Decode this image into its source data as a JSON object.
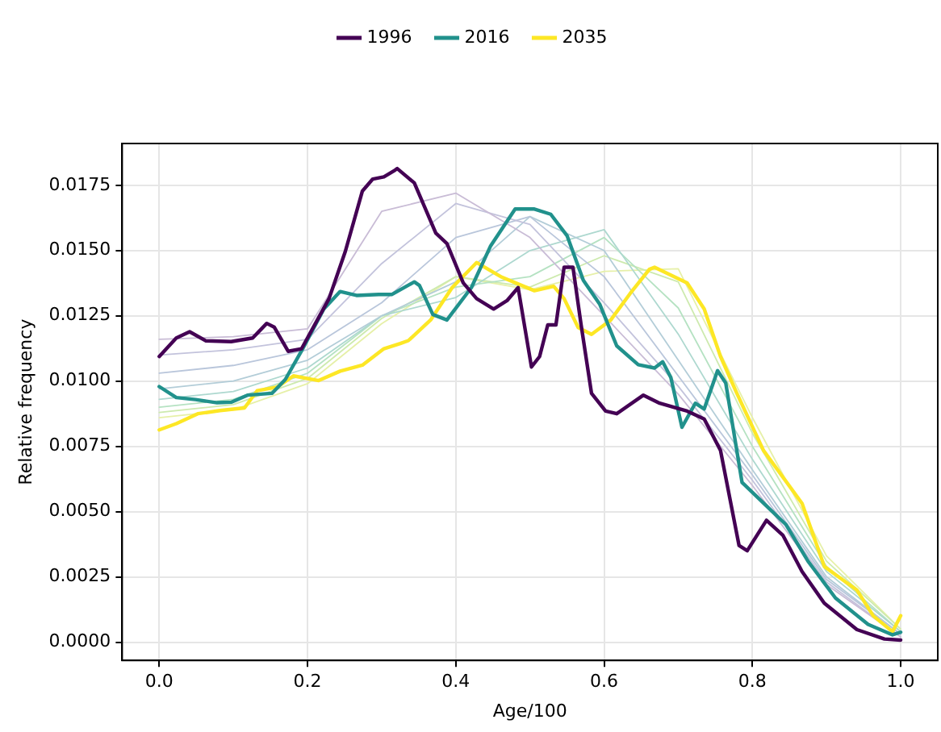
{
  "chart_data": {
    "type": "line",
    "xlabel": "Age/100",
    "ylabel": "Relative frequency",
    "legend": "top",
    "grid": true,
    "xlim": [
      -0.05,
      1.05
    ],
    "ylim": [
      -0.0007,
      0.0191
    ],
    "xticks": [
      {
        "value": 0,
        "label": "0.0"
      },
      {
        "value": 0.2,
        "label": "0.2"
      },
      {
        "value": 0.4,
        "label": "0.4"
      },
      {
        "value": 0.6,
        "label": "0.6"
      },
      {
        "value": 0.8,
        "label": "0.8"
      },
      {
        "value": 1,
        "label": "1.0"
      }
    ],
    "yticks": [
      {
        "value": 0,
        "label": "0.0000"
      },
      {
        "value": 0.0025,
        "label": "0.0025"
      },
      {
        "value": 0.005,
        "label": "0.0050"
      },
      {
        "value": 0.0075,
        "label": "0.0075"
      },
      {
        "value": 0.01,
        "label": "0.0100"
      },
      {
        "value": 0.0125,
        "label": "0.0125"
      },
      {
        "value": 0.015,
        "label": "0.0150"
      },
      {
        "value": 0.0175,
        "label": "0.0175"
      }
    ],
    "series": [
      {
        "color": "#c9bcd6",
        "x": [
          0,
          0.1,
          0.2,
          0.3,
          0.4,
          0.5,
          0.6,
          0.7,
          0.8,
          0.9,
          1
        ],
        "values": [
          0.0116,
          0.0117,
          0.012,
          0.0165,
          0.0172,
          0.0155,
          0.0125,
          0.0095,
          0.006,
          0.0022,
          0.0002
        ]
      },
      {
        "color": "#c3c3dc",
        "x": [
          0,
          0.1,
          0.2,
          0.3,
          0.4,
          0.5,
          0.6,
          0.7,
          0.8,
          0.9,
          1
        ],
        "values": [
          0.011,
          0.0112,
          0.0116,
          0.0145,
          0.0168,
          0.016,
          0.013,
          0.0098,
          0.0062,
          0.0023,
          0.0002
        ]
      },
      {
        "color": "#b9c6db",
        "x": [
          0,
          0.1,
          0.2,
          0.3,
          0.4,
          0.5,
          0.6,
          0.7,
          0.8,
          0.9,
          1
        ],
        "values": [
          0.0103,
          0.0106,
          0.0112,
          0.013,
          0.0155,
          0.0163,
          0.014,
          0.0102,
          0.0064,
          0.0024,
          0.0003
        ]
      },
      {
        "color": "#b3cdd8",
        "x": [
          0,
          0.1,
          0.2,
          0.3,
          0.4,
          0.5,
          0.6,
          0.7,
          0.8,
          0.9,
          1
        ],
        "values": [
          0.0097,
          0.01,
          0.0108,
          0.0125,
          0.0138,
          0.0163,
          0.015,
          0.0108,
          0.0066,
          0.0025,
          0.0003
        ]
      },
      {
        "color": "#add8cf",
        "x": [
          0,
          0.1,
          0.2,
          0.3,
          0.4,
          0.5,
          0.6,
          0.7,
          0.8,
          0.9,
          1
        ],
        "values": [
          0.0093,
          0.0096,
          0.0105,
          0.0125,
          0.0132,
          0.015,
          0.0158,
          0.0118,
          0.007,
          0.0027,
          0.0004
        ]
      },
      {
        "color": "#b5e2c2",
        "x": [
          0,
          0.1,
          0.2,
          0.3,
          0.4,
          0.5,
          0.6,
          0.7,
          0.8,
          0.9,
          1
        ],
        "values": [
          0.009,
          0.0093,
          0.0103,
          0.0125,
          0.0136,
          0.014,
          0.0155,
          0.0128,
          0.0075,
          0.0029,
          0.0004
        ]
      },
      {
        "color": "#cdeaae",
        "x": [
          0,
          0.1,
          0.2,
          0.3,
          0.4,
          0.5,
          0.6,
          0.7,
          0.8,
          0.9,
          1
        ],
        "values": [
          0.0088,
          0.0091,
          0.0101,
          0.0124,
          0.014,
          0.0136,
          0.0148,
          0.0138,
          0.008,
          0.0031,
          0.0005
        ]
      },
      {
        "color": "#e6f0a8",
        "x": [
          0,
          0.1,
          0.2,
          0.3,
          0.4,
          0.5,
          0.6,
          0.7,
          0.8,
          0.9,
          1
        ],
        "values": [
          0.0086,
          0.0089,
          0.0099,
          0.0122,
          0.014,
          0.0135,
          0.0142,
          0.0143,
          0.0086,
          0.0033,
          0.0005
        ]
      },
      {
        "name": "1996",
        "color": "#440154",
        "x": [
          0,
          0.023,
          0.041,
          0.063,
          0.097,
          0.126,
          0.145,
          0.155,
          0.174,
          0.192,
          0.229,
          0.251,
          0.274,
          0.288,
          0.303,
          0.318,
          0.321,
          0.344,
          0.373,
          0.388,
          0.41,
          0.428,
          0.451,
          0.469,
          0.484,
          0.502,
          0.513,
          0.524,
          0.535,
          0.546,
          0.558,
          0.569,
          0.583,
          0.602,
          0.617,
          0.653,
          0.675,
          0.712,
          0.735,
          0.757,
          0.782,
          0.793,
          0.819,
          0.841,
          0.867,
          0.897,
          0.941,
          0.978,
          1
        ],
        "values": [
          0.01094,
          0.01165,
          0.01189,
          0.01154,
          0.01151,
          0.01165,
          0.01221,
          0.01207,
          0.01114,
          0.01124,
          0.01316,
          0.01497,
          0.01728,
          0.01774,
          0.01782,
          0.01808,
          0.01814,
          0.01759,
          0.01567,
          0.01527,
          0.01376,
          0.01316,
          0.01276,
          0.01308,
          0.01358,
          0.01054,
          0.01094,
          0.01215,
          0.01215,
          0.01436,
          0.01436,
          0.01215,
          0.00953,
          0.00885,
          0.00875,
          0.00946,
          0.00915,
          0.00885,
          0.00855,
          0.00734,
          0.0037,
          0.0035,
          0.00467,
          0.0041,
          0.0027,
          0.00149,
          0.00048,
          0.00012,
          8e-05
        ]
      },
      {
        "name": "2016",
        "color": "#21918c",
        "x": [
          0,
          0.023,
          0.049,
          0.078,
          0.097,
          0.119,
          0.152,
          0.17,
          0.192,
          0.222,
          0.244,
          0.266,
          0.296,
          0.314,
          0.344,
          0.351,
          0.369,
          0.388,
          0.421,
          0.447,
          0.48,
          0.506,
          0.528,
          0.55,
          0.572,
          0.594,
          0.617,
          0.646,
          0.668,
          0.679,
          0.69,
          0.705,
          0.723,
          0.735,
          0.753,
          0.764,
          0.786,
          0.823,
          0.845,
          0.875,
          0.912,
          0.956,
          0.989,
          1
        ],
        "values": [
          0.00979,
          0.00937,
          0.00929,
          0.00917,
          0.00919,
          0.00946,
          0.00953,
          0.01006,
          0.01116,
          0.01276,
          0.01343,
          0.01328,
          0.01332,
          0.01332,
          0.0138,
          0.01366,
          0.01255,
          0.01234,
          0.01358,
          0.01518,
          0.01659,
          0.01659,
          0.01639,
          0.01557,
          0.01386,
          0.01295,
          0.01135,
          0.01063,
          0.0105,
          0.01074,
          0.01014,
          0.00823,
          0.00915,
          0.00893,
          0.0104,
          0.00993,
          0.00612,
          0.00511,
          0.00451,
          0.0031,
          0.00169,
          0.00068,
          0.00028,
          0.00038
        ]
      },
      {
        "name": "2035",
        "color": "#fde725",
        "x": [
          0,
          0.023,
          0.052,
          0.082,
          0.115,
          0.132,
          0.159,
          0.181,
          0.215,
          0.244,
          0.274,
          0.303,
          0.325,
          0.336,
          0.366,
          0.395,
          0.428,
          0.462,
          0.506,
          0.532,
          0.546,
          0.565,
          0.583,
          0.609,
          0.635,
          0.661,
          0.668,
          0.69,
          0.712,
          0.735,
          0.757,
          0.779,
          0.815,
          0.867,
          0.897,
          0.912,
          0.941,
          0.963,
          0.989,
          1
        ],
        "values": [
          0.00813,
          0.00837,
          0.00875,
          0.00887,
          0.00897,
          0.00963,
          0.00977,
          0.0102,
          0.01002,
          0.01038,
          0.01061,
          0.01124,
          0.01144,
          0.01155,
          0.01234,
          0.01358,
          0.01454,
          0.01398,
          0.01346,
          0.01363,
          0.01316,
          0.01205,
          0.01179,
          0.01234,
          0.01335,
          0.01428,
          0.01436,
          0.01406,
          0.01376,
          0.01276,
          0.01094,
          0.00953,
          0.00734,
          0.00531,
          0.0029,
          0.00259,
          0.00199,
          0.00101,
          0.0004,
          0.00101
        ]
      }
    ]
  }
}
